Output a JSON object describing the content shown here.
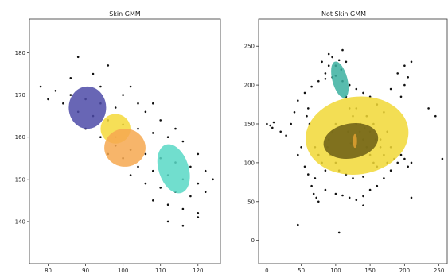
{
  "chart_data": [
    {
      "type": "scatter",
      "title": "Skin GMM",
      "xlabel": "",
      "ylabel": "",
      "xlim": [
        75,
        126
      ],
      "ylim": [
        130,
        188
      ],
      "xticks": [
        80,
        90,
        100,
        110,
        120
      ],
      "yticks": [
        140,
        150,
        160,
        170,
        180
      ],
      "grid": false,
      "points": [
        [
          78,
          172
        ],
        [
          82,
          171
        ],
        [
          86,
          170
        ],
        [
          90,
          169
        ],
        [
          94,
          168
        ],
        [
          98,
          167
        ],
        [
          84,
          168
        ],
        [
          88,
          166
        ],
        [
          92,
          165
        ],
        [
          96,
          164
        ],
        [
          100,
          163
        ],
        [
          104,
          162
        ],
        [
          108,
          161
        ],
        [
          112,
          160
        ],
        [
          116,
          159
        ],
        [
          90,
          162
        ],
        [
          94,
          160
        ],
        [
          98,
          158
        ],
        [
          102,
          157
        ],
        [
          106,
          156
        ],
        [
          110,
          155
        ],
        [
          114,
          154
        ],
        [
          118,
          153
        ],
        [
          122,
          152
        ],
        [
          96,
          156
        ],
        [
          100,
          155
        ],
        [
          104,
          153
        ],
        [
          108,
          152
        ],
        [
          112,
          151
        ],
        [
          116,
          150
        ],
        [
          120,
          149
        ],
        [
          102,
          151
        ],
        [
          106,
          149
        ],
        [
          110,
          148
        ],
        [
          114,
          147
        ],
        [
          118,
          146
        ],
        [
          108,
          145
        ],
        [
          112,
          144
        ],
        [
          116,
          143
        ],
        [
          120,
          142
        ],
        [
          112,
          140
        ],
        [
          116,
          139
        ],
        [
          120,
          141
        ],
        [
          92,
          175
        ],
        [
          94,
          172
        ],
        [
          100,
          170
        ],
        [
          104,
          168
        ],
        [
          86,
          174
        ],
        [
          80,
          169
        ],
        [
          106,
          166
        ],
        [
          110,
          164
        ],
        [
          124,
          150
        ],
        [
          122,
          147
        ],
        [
          98,
          160
        ],
        [
          120,
          156
        ],
        [
          88,
          179
        ],
        [
          96,
          177
        ],
        [
          102,
          172
        ],
        [
          108,
          168
        ],
        [
          114,
          162
        ]
      ],
      "components": [
        {
          "color": "#4d4ba8",
          "mean": [
            90.5,
            167
          ],
          "width": 10,
          "height": 10,
          "angle": 0
        },
        {
          "color": "#f4d93a",
          "mean": [
            98,
            162
          ],
          "width": 8,
          "height": 7,
          "angle": 0
        },
        {
          "color": "#f6a850",
          "mean": [
            100.5,
            157.5
          ],
          "width": 11,
          "height": 9,
          "angle": 0
        },
        {
          "color": "#58d8c6",
          "mean": [
            113.5,
            152.5
          ],
          "width": 8,
          "height": 12,
          "angle": -18
        }
      ]
    },
    {
      "type": "scatter",
      "title": "Not Skin GMM",
      "xlabel": "",
      "ylabel": "",
      "xlim": [
        -12,
        262
      ],
      "ylim": [
        -30,
        285
      ],
      "xticks": [
        0,
        50,
        100,
        150,
        200,
        250
      ],
      "yticks": [
        0,
        50,
        100,
        150,
        200,
        250
      ],
      "grid": false,
      "points": [
        [
          0,
          150
        ],
        [
          5,
          148
        ],
        [
          10,
          152
        ],
        [
          8,
          145
        ],
        [
          20,
          140
        ],
        [
          28,
          135
        ],
        [
          35,
          150
        ],
        [
          40,
          165
        ],
        [
          45,
          180
        ],
        [
          55,
          190
        ],
        [
          65,
          198
        ],
        [
          75,
          205
        ],
        [
          85,
          208
        ],
        [
          95,
          210
        ],
        [
          100,
          212
        ],
        [
          90,
          240
        ],
        [
          95,
          236
        ],
        [
          105,
          232
        ],
        [
          110,
          245
        ],
        [
          115,
          230
        ],
        [
          60,
          170
        ],
        [
          58,
          160
        ],
        [
          62,
          150
        ],
        [
          70,
          120
        ],
        [
          75,
          110
        ],
        [
          80,
          100
        ],
        [
          85,
          90
        ],
        [
          70,
          80
        ],
        [
          65,
          70
        ],
        [
          68,
          60
        ],
        [
          72,
          55
        ],
        [
          75,
          50
        ],
        [
          85,
          65
        ],
        [
          100,
          60
        ],
        [
          110,
          58
        ],
        [
          120,
          55
        ],
        [
          130,
          52
        ],
        [
          140,
          57
        ],
        [
          150,
          65
        ],
        [
          160,
          70
        ],
        [
          170,
          80
        ],
        [
          180,
          90
        ],
        [
          190,
          100
        ],
        [
          200,
          105
        ],
        [
          210,
          100
        ],
        [
          205,
          95
        ],
        [
          195,
          110
        ],
        [
          180,
          120
        ],
        [
          175,
          140
        ],
        [
          170,
          165
        ],
        [
          160,
          175
        ],
        [
          150,
          185
        ],
        [
          140,
          190
        ],
        [
          130,
          195
        ],
        [
          120,
          200
        ],
        [
          110,
          205
        ],
        [
          115,
          185
        ],
        [
          120,
          170
        ],
        [
          125,
          160
        ],
        [
          130,
          150
        ],
        [
          135,
          140
        ],
        [
          140,
          130
        ],
        [
          145,
          120
        ],
        [
          150,
          110
        ],
        [
          155,
          100
        ],
        [
          100,
          150
        ],
        [
          95,
          140
        ],
        [
          90,
          130
        ],
        [
          88,
          120
        ],
        [
          92,
          110
        ],
        [
          100,
          100
        ],
        [
          105,
          90
        ],
        [
          115,
          85
        ],
        [
          125,
          80
        ],
        [
          140,
          82
        ],
        [
          160,
          95
        ],
        [
          170,
          110
        ],
        [
          165,
          130
        ],
        [
          155,
          150
        ],
        [
          145,
          160
        ],
        [
          130,
          170
        ],
        [
          118,
          140
        ],
        [
          122,
          125
        ],
        [
          128,
          118
        ],
        [
          136,
          150
        ],
        [
          142,
          145
        ],
        [
          150,
          140
        ],
        [
          158,
          130
        ],
        [
          165,
          120
        ],
        [
          175,
          100
        ],
        [
          185,
          105
        ],
        [
          200,
          200
        ],
        [
          205,
          210
        ],
        [
          210,
          230
        ],
        [
          200,
          225
        ],
        [
          190,
          215
        ],
        [
          180,
          195
        ],
        [
          195,
          185
        ],
        [
          100,
          225
        ],
        [
          108,
          220
        ],
        [
          90,
          225
        ],
        [
          80,
          230
        ],
        [
          85,
          215
        ],
        [
          50,
          120
        ],
        [
          45,
          110
        ],
        [
          55,
          95
        ],
        [
          60,
          85
        ],
        [
          235,
          170
        ],
        [
          245,
          160
        ],
        [
          255,
          105
        ],
        [
          45,
          20
        ],
        [
          105,
          10
        ],
        [
          210,
          55
        ],
        [
          140,
          45
        ]
      ],
      "components": [
        {
          "color": "#f1d836",
          "mean": [
            131,
            135
          ],
          "width": 150,
          "height": 100,
          "angle": -8
        },
        {
          "color": "#6b5e15",
          "mean": [
            122,
            128
          ],
          "width": 80,
          "height": 45,
          "angle": -10
        },
        {
          "color": "#3bb0a0",
          "mean": [
            106,
            207
          ],
          "width": 22,
          "height": 48,
          "angle": -15
        },
        {
          "color": "#e0a030",
          "mean": [
            128,
            128
          ],
          "width": 6,
          "height": 18,
          "angle": 0
        }
      ]
    }
  ]
}
